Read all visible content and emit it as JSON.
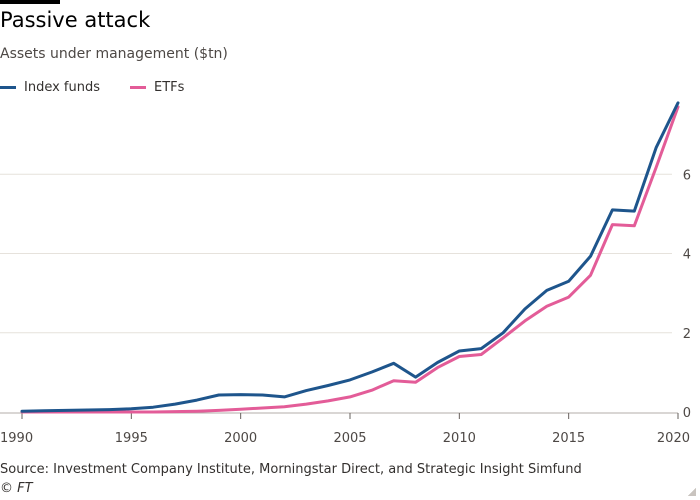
{
  "title": "Passive attack",
  "subtitle": "Assets under management ($tn)",
  "source": "Source: Investment Company Institute, Morningstar Direct, and Strategic Insight Simfund",
  "copyright": "© FT",
  "colors": {
    "index_funds": "#1e558c",
    "etfs": "#e35c98",
    "grid": "#e6e2dc",
    "axis": "#4d4845"
  },
  "chart_data": {
    "type": "line",
    "xlabel": "",
    "ylabel": "",
    "xlim": [
      1990,
      2020
    ],
    "ylim": [
      0,
      8
    ],
    "x_ticks": [
      "1990",
      "1995",
      "2000",
      "2005",
      "2010",
      "2015",
      "2020"
    ],
    "y_ticks": [
      "0",
      "2",
      "4",
      "6"
    ],
    "legend_position": "top-left",
    "series": [
      {
        "name": "Index funds",
        "color": "#1e558c",
        "x": [
          1990,
          1991,
          1992,
          1993,
          1994,
          1995,
          1996,
          1997,
          1998,
          1999,
          2000,
          2001,
          2002,
          2003,
          2004,
          2005,
          2006,
          2007,
          2008,
          2009,
          2010,
          2011,
          2012,
          2013,
          2014,
          2015,
          2016,
          2017,
          2018,
          2019,
          2020
        ],
        "y": [
          0.02,
          0.03,
          0.04,
          0.05,
          0.06,
          0.08,
          0.12,
          0.2,
          0.3,
          0.43,
          0.44,
          0.43,
          0.38,
          0.54,
          0.67,
          0.81,
          1.01,
          1.23,
          0.88,
          1.25,
          1.54,
          1.6,
          2.0,
          2.6,
          3.07,
          3.3,
          3.93,
          5.1,
          5.07,
          6.67,
          7.8
        ]
      },
      {
        "name": "ETFs",
        "color": "#e35c98",
        "x": [
          1990,
          1991,
          1992,
          1993,
          1994,
          1995,
          1996,
          1997,
          1998,
          1999,
          2000,
          2001,
          2002,
          2003,
          2004,
          2005,
          2006,
          2007,
          2008,
          2009,
          2010,
          2011,
          2012,
          2013,
          2014,
          2015,
          2016,
          2017,
          2018,
          2019,
          2020
        ],
        "y": [
          0.0,
          0.0,
          0.0,
          0.0,
          0.0,
          0.0,
          0.0,
          0.01,
          0.02,
          0.04,
          0.07,
          0.1,
          0.13,
          0.2,
          0.28,
          0.38,
          0.55,
          0.79,
          0.75,
          1.12,
          1.4,
          1.45,
          1.87,
          2.3,
          2.67,
          2.9,
          3.45,
          4.73,
          4.7,
          6.17,
          7.7
        ]
      }
    ]
  }
}
